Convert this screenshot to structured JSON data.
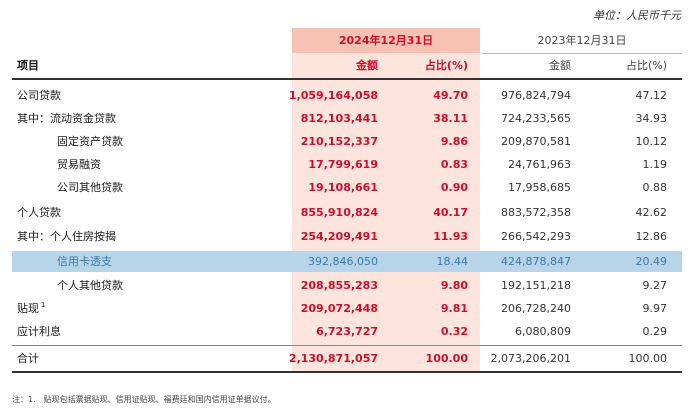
{
  "unit_label": "单位：人民币千元",
  "header": {
    "current_period": "2024年12月31日",
    "prior_period": "2023年12月31日",
    "item": "项目",
    "amount": "金额",
    "ratio": "占比(%)",
    "amount_prev": "金额",
    "ratio_prev": "占比(%)"
  },
  "rows": [
    {
      "label": "公司贷款",
      "amount": "1,059,164,058",
      "ratio": "49.70",
      "amount_prev": "976,824,794",
      "ratio_prev": "47.12"
    },
    {
      "label": "其中：流动资金贷款",
      "amount": "812,103,441",
      "ratio": "38.11",
      "amount_prev": "724,233,565",
      "ratio_prev": "34.93"
    },
    {
      "label": "固定资产贷款",
      "amount": "210,152,337",
      "ratio": "9.86",
      "amount_prev": "209,870,581",
      "ratio_prev": "10.12"
    },
    {
      "label": "贸易融资",
      "amount": "17,799,619",
      "ratio": "0.83",
      "amount_prev": "24,761,963",
      "ratio_prev": "1.19"
    },
    {
      "label": "公司其他贷款",
      "amount": "19,108,661",
      "ratio": "0.90",
      "amount_prev": "17,958,685",
      "ratio_prev": "0.88"
    },
    {
      "label": "个人贷款",
      "amount": "855,910,824",
      "ratio": "40.17",
      "amount_prev": "883,572,358",
      "ratio_prev": "42.62"
    },
    {
      "label": "其中：个人住房按揭",
      "amount": "254,209,491",
      "ratio": "11.93",
      "amount_prev": "266,542,293",
      "ratio_prev": "12.86"
    },
    {
      "label": "信用卡透支",
      "amount": "392,846,050",
      "ratio": "18.44",
      "amount_prev": "424,878,847",
      "ratio_prev": "20.49"
    },
    {
      "label": "个人其他贷款",
      "amount": "208,855,283",
      "ratio": "9.80",
      "amount_prev": "192,151,218",
      "ratio_prev": "9.27"
    },
    {
      "label": "贴现",
      "sup": "1",
      "amount": "209,072,448",
      "ratio": "9.81",
      "amount_prev": "206,728,240",
      "ratio_prev": "9.97"
    },
    {
      "label": "应计利息",
      "amount": "6,723,727",
      "ratio": "0.32",
      "amount_prev": "6,080,809",
      "ratio_prev": "0.29"
    },
    {
      "label": "合计",
      "amount": "2,130,871,057",
      "ratio": "100.00",
      "amount_prev": "2,073,206,201",
      "ratio_prev": "100.00"
    }
  ],
  "footnote": "注：1.　贴现包括票据贴现、信用证贴现、福费廷和国内信用证单据议付。"
}
